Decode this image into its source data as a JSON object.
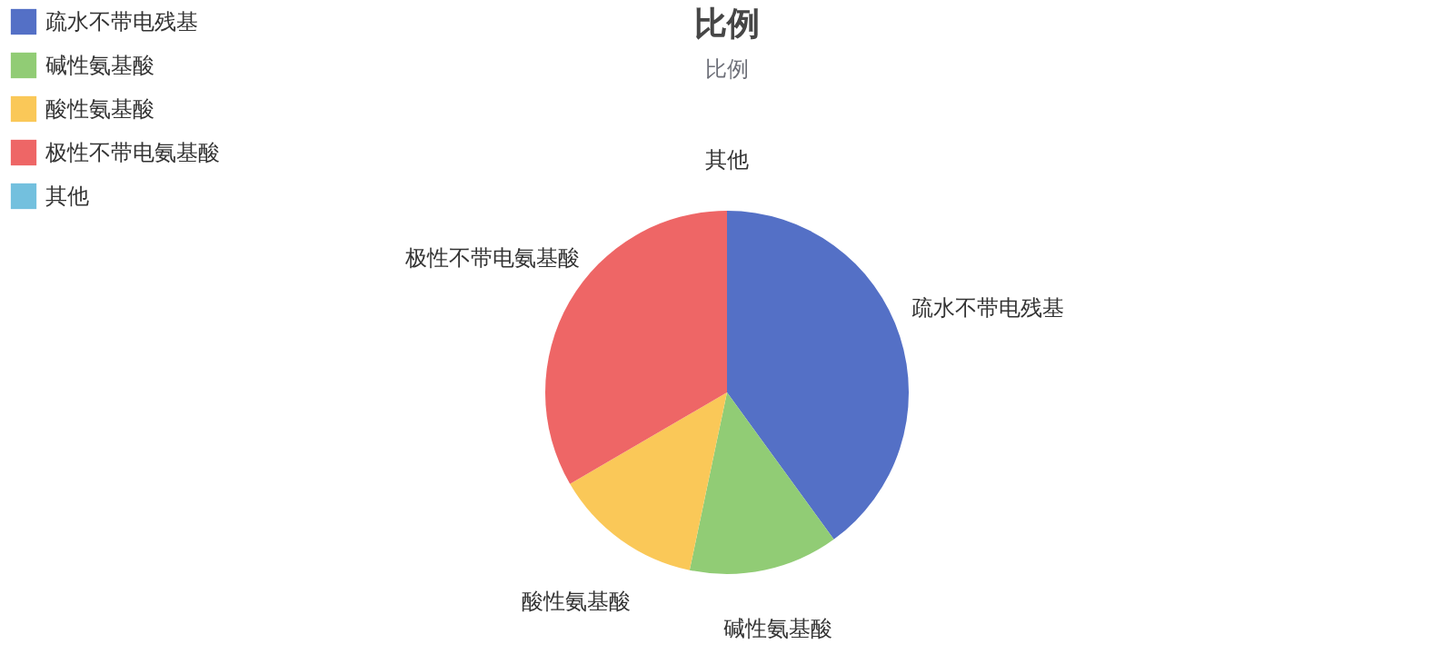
{
  "chart_data": {
    "type": "pie",
    "title": "比例",
    "subtitle": "比例",
    "categories": [
      "疏水不带电残基",
      "碱性氨基酸",
      "酸性氨基酸",
      "极性不带电氨基酸",
      "其他"
    ],
    "values": [
      40,
      13.3,
      13.3,
      33.4,
      0
    ],
    "colors": [
      "#5470c6",
      "#91cc75",
      "#fac858",
      "#ee6666",
      "#73c0de"
    ],
    "legend": "top left"
  }
}
